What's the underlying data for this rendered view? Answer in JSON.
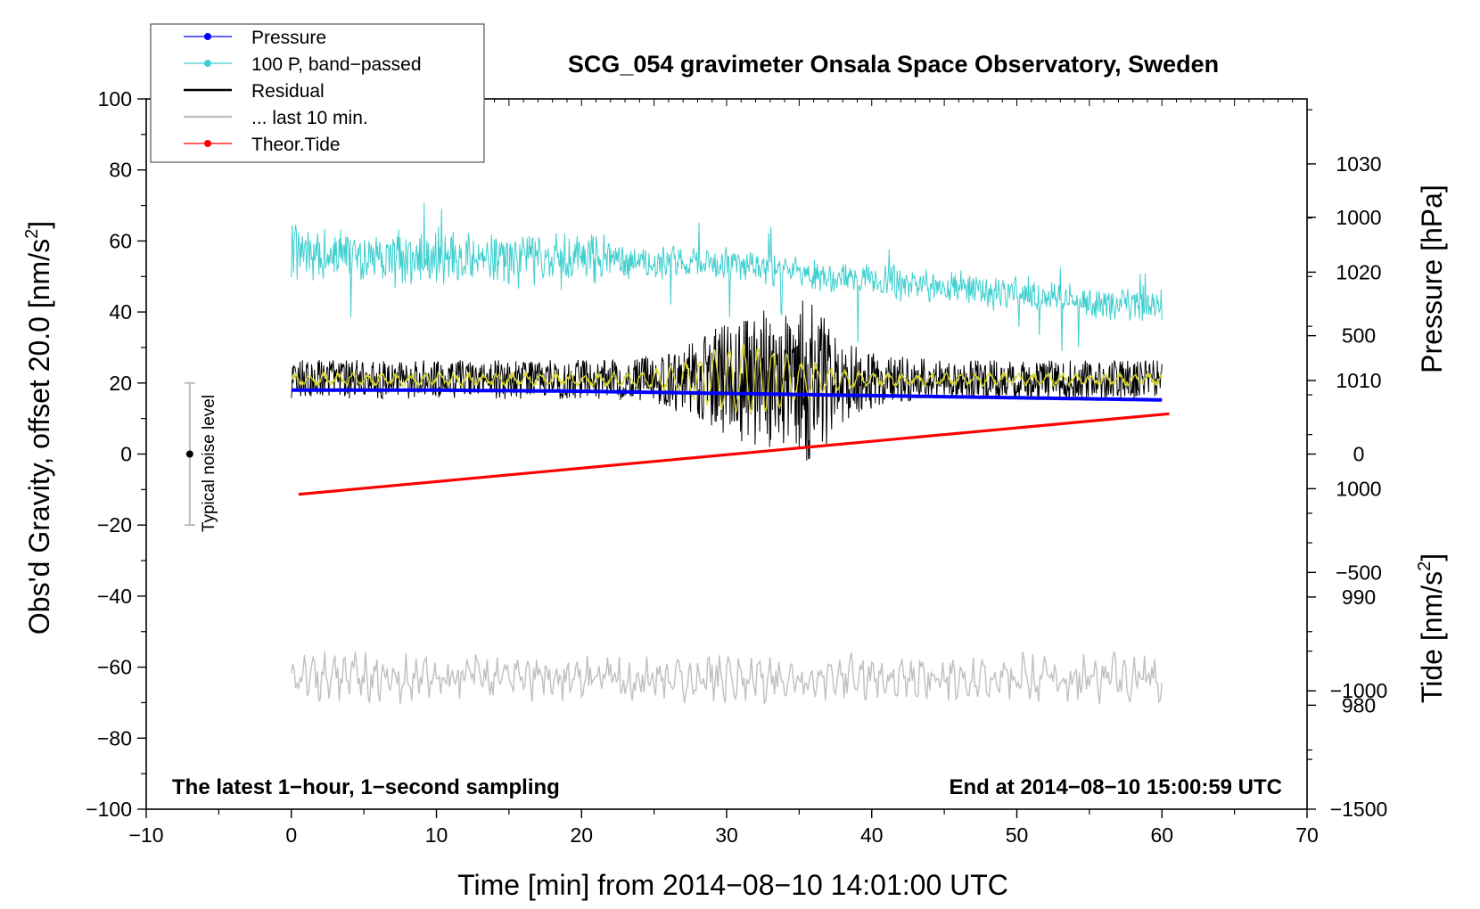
{
  "colors": {
    "pressure": "#0000ff",
    "bandpassed": "#3fcfcf",
    "residual": "#000000",
    "last10": "#c0c0c0",
    "tide": "#ff0000",
    "filtered_residual": "#d8d830",
    "noise_bar": "#bbbbbb"
  },
  "chart_data": {
    "type": "line",
    "title": "SCG_054 gravimeter Onsala Space Observatory, Sweden",
    "xlabel": "Time [min] from 2014−08−10 14:01:00 UTC",
    "ylabel_main": "Obs'd Gravity, offset 20.0 [nm/s",
    "ylabel_main_sup": "2",
    "ylabel_main_close": "]",
    "ylabel_pressure": "Pressure [hPa]",
    "ylabel_tide": "Tide [nm/s",
    "ylabel_tide_sup": "2",
    "ylabel_tide_close": "]",
    "xlim": [
      -10,
      70
    ],
    "ylim": [
      -100,
      100
    ],
    "pressure_ylim": [
      970.4,
      1036.0
    ],
    "tide_ylim": [
      -1500,
      1500
    ],
    "x_ticks": [
      -10,
      0,
      10,
      20,
      30,
      40,
      50,
      60,
      70
    ],
    "x_tick_labels": [
      "−10",
      "0",
      "10",
      "20",
      "30",
      "40",
      "50",
      "60",
      "70"
    ],
    "y_ticks": [
      -100,
      -80,
      -60,
      -40,
      -20,
      0,
      20,
      40,
      60,
      80,
      100
    ],
    "y_tick_labels": [
      "−100",
      "−80",
      "−60",
      "−40",
      "−20",
      "0",
      "20",
      "40",
      "60",
      "80",
      "100"
    ],
    "pressure_ticks": [
      980,
      990,
      1000,
      1010,
      1020,
      1030
    ],
    "pressure_tick_labels": [
      "980",
      "990",
      "1000",
      "1010",
      "1020",
      "1030"
    ],
    "tide_ticks": [
      -1500,
      -1000,
      -500,
      0,
      500,
      1000
    ],
    "tide_tick_labels": [
      "−1500",
      "−1000",
      "−500",
      "0",
      "500",
      "1000"
    ],
    "note_left": "The latest 1−hour, 1−second sampling",
    "note_right": "End at 2014−08−10 15:00:59 UTC",
    "noise_label": "Typical noise level",
    "noise_bar": {
      "x": -7,
      "y_low": -20,
      "y_high": 20,
      "center": 0
    },
    "legend": [
      {
        "label": "Pressure",
        "style": "line-dot",
        "color_key": "pressure"
      },
      {
        "label": "100 P, band−passed",
        "style": "line-dot",
        "color_key": "bandpassed"
      },
      {
        "label": "Residual",
        "style": "line",
        "color_key": "residual"
      },
      {
        "label": "... last 10 min.",
        "style": "line",
        "color_key": "last10"
      },
      {
        "label": "Theor.Tide",
        "style": "line-dot",
        "color_key": "tide"
      }
    ],
    "series": [
      {
        "name": "Pressure",
        "axis": "pressure",
        "x": [
          0,
          10,
          20,
          30,
          40,
          50,
          60
        ],
        "values": [
          1009.1,
          1009.1,
          1009.0,
          1008.8,
          1008.6,
          1008.4,
          1008.2
        ]
      },
      {
        "name": "100 P, band-passed",
        "axis": "left",
        "x": [
          0,
          5,
          10,
          15,
          20,
          25,
          30,
          35,
          40,
          45,
          50,
          55,
          60
        ],
        "values": [
          57,
          56,
          55,
          55,
          55,
          54,
          54,
          51,
          49,
          47,
          45,
          43,
          42
        ]
      },
      {
        "name": "Residual",
        "axis": "left",
        "x": [
          0,
          10,
          20,
          25,
          30,
          33,
          36,
          40,
          45,
          50,
          55,
          60
        ],
        "values": [
          21,
          21,
          21,
          21,
          21,
          21,
          21,
          21,
          21,
          21,
          21,
          21
        ]
      },
      {
        "name": "... last 10 min.",
        "axis": "left",
        "x": [
          0,
          10,
          20,
          30,
          40,
          50,
          60
        ],
        "values": [
          -63,
          -63,
          -63,
          -63,
          -63,
          -63,
          -63
        ]
      },
      {
        "name": "Theor.Tide",
        "axis": "tide",
        "x": [
          0.5,
          60.5
        ],
        "values": [
          -170,
          170
        ]
      }
    ]
  }
}
